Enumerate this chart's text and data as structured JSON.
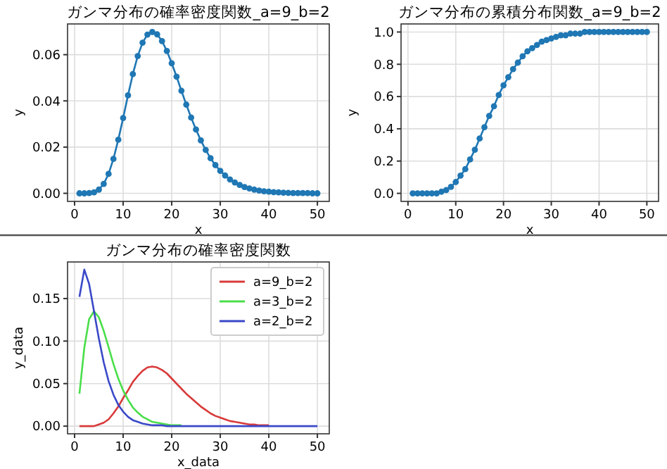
{
  "chart_data": [
    {
      "type": "line",
      "title": "ガンマ分布の確率密度関数_a=9_b=2",
      "xlabel": "x",
      "ylabel": "y",
      "x": [
        1,
        2,
        3,
        4,
        5,
        6,
        7,
        8,
        9,
        10,
        11,
        12,
        13,
        14,
        15,
        16,
        17,
        18,
        19,
        20,
        21,
        22,
        23,
        24,
        25,
        26,
        27,
        28,
        29,
        30,
        31,
        32,
        33,
        34,
        35,
        36,
        37,
        38,
        39,
        40,
        41,
        42,
        43,
        44,
        45,
        46,
        47,
        48,
        49,
        50
      ],
      "series": [
        {
          "color": "#1f77b4",
          "values": [
            0.0,
            0.0,
            0.0001,
            0.0004,
            0.0016,
            0.0041,
            0.0084,
            0.0149,
            0.0232,
            0.0326,
            0.0424,
            0.0516,
            0.0594,
            0.0652,
            0.0687,
            0.0698,
            0.0688,
            0.0659,
            0.0616,
            0.0563,
            0.0505,
            0.0444,
            0.0384,
            0.0328,
            0.0276,
            0.0229,
            0.0188,
            0.0152,
            0.0122,
            0.0097,
            0.0077,
            0.006,
            0.0047,
            0.0036,
            0.0027,
            0.0021,
            0.0016,
            0.0012,
            0.0009,
            0.0007,
            0.0005,
            0.0004,
            0.0003,
            0.0002,
            0.0001,
            0.0001,
            0.0001,
            0.0001,
            0.0,
            0.0
          ]
        }
      ],
      "xlim": [
        -1.45,
        52.45
      ],
      "ylim": [
        -0.0035,
        0.0733
      ],
      "xticks": [
        0,
        10,
        20,
        30,
        40,
        50
      ],
      "yticks": [
        {
          "value": 0,
          "label": "0.00"
        },
        {
          "value": 0.02,
          "label": "0.02"
        },
        {
          "value": 0.04,
          "label": "0.04"
        },
        {
          "value": 0.06,
          "label": "0.06"
        }
      ],
      "grid": true,
      "marker": "circle"
    },
    {
      "type": "line",
      "title": "ガンマ分布の累積分布関数_a=9_b=2",
      "xlabel": "x",
      "ylabel": "y",
      "x": [
        1,
        2,
        3,
        4,
        5,
        6,
        7,
        8,
        9,
        10,
        11,
        12,
        13,
        14,
        15,
        16,
        17,
        18,
        19,
        20,
        21,
        22,
        23,
        24,
        25,
        26,
        27,
        28,
        29,
        30,
        31,
        32,
        33,
        34,
        35,
        36,
        37,
        38,
        39,
        40,
        41,
        42,
        43,
        44,
        45,
        46,
        47,
        48,
        49,
        50
      ],
      "series": [
        {
          "color": "#1f77b4",
          "values": [
            0.0,
            0.0,
            0.0,
            0.0,
            0.0,
            0.0,
            0.01,
            0.02,
            0.04,
            0.07,
            0.11,
            0.15,
            0.21,
            0.27,
            0.34,
            0.41,
            0.48,
            0.54,
            0.61,
            0.67,
            0.72,
            0.77,
            0.81,
            0.85,
            0.88,
            0.9,
            0.92,
            0.94,
            0.95,
            0.96,
            0.97,
            0.98,
            0.98,
            0.99,
            0.99,
            0.99,
            1.0,
            1.0,
            1.0,
            1.0,
            1.0,
            1.0,
            1.0,
            1.0,
            1.0,
            1.0,
            1.0,
            1.0,
            1.0,
            1.0
          ]
        }
      ],
      "xlim": [
        -1.45,
        52.45
      ],
      "ylim": [
        -0.05,
        1.05
      ],
      "xticks": [
        0,
        10,
        20,
        30,
        40,
        50
      ],
      "yticks": [
        {
          "value": 0,
          "label": "0.0"
        },
        {
          "value": 0.2,
          "label": "0.2"
        },
        {
          "value": 0.4,
          "label": "0.4"
        },
        {
          "value": 0.6,
          "label": "0.6"
        },
        {
          "value": 0.8,
          "label": "0.8"
        },
        {
          "value": 1,
          "label": "1.0"
        }
      ],
      "grid": true,
      "marker": "circle"
    },
    {
      "type": "line",
      "title": "ガンマ分布の確率密度関数",
      "xlabel": "x_data",
      "ylabel": "y_data",
      "x": [
        1,
        2,
        3,
        4,
        5,
        6,
        7,
        8,
        9,
        10,
        11,
        12,
        13,
        14,
        15,
        16,
        17,
        18,
        19,
        20,
        21,
        22,
        23,
        24,
        25,
        26,
        27,
        28,
        29,
        30,
        31,
        32,
        33,
        34,
        35,
        36,
        37,
        38,
        39,
        40,
        41,
        42,
        43,
        44,
        45,
        46,
        47,
        48,
        49,
        50
      ],
      "series": [
        {
          "name": "a=9_b=2",
          "color": "#d83a3a",
          "values": [
            0.0,
            0.0,
            0.0,
            0.0,
            0.002,
            0.004,
            0.008,
            0.015,
            0.023,
            0.033,
            0.042,
            0.052,
            0.059,
            0.065,
            0.069,
            0.07,
            0.069,
            0.066,
            0.062,
            0.056,
            0.05,
            0.044,
            0.038,
            0.033,
            0.028,
            0.023,
            0.019,
            0.015,
            0.012,
            0.01,
            0.008,
            0.006,
            0.005,
            0.004,
            0.003,
            0.002,
            0.002,
            0.001,
            0.001,
            0.001,
            null,
            null,
            null,
            null,
            null,
            null,
            null,
            null,
            null,
            null
          ]
        },
        {
          "name": "a=3_b=2",
          "color": "#4ade4a",
          "values": [
            0.038,
            0.092,
            0.126,
            0.135,
            0.128,
            0.112,
            0.093,
            0.073,
            0.056,
            0.042,
            0.031,
            0.022,
            0.016,
            0.011,
            0.008,
            0.005,
            0.004,
            0.003,
            0.002,
            0.001,
            0.001,
            0.001,
            null,
            null,
            null,
            null,
            null,
            null,
            null,
            null,
            null,
            null,
            null,
            null,
            null,
            null,
            null,
            null,
            null,
            null,
            null,
            null,
            null,
            null,
            null,
            null,
            null,
            null,
            null,
            null
          ]
        },
        {
          "name": "a=2_b=2",
          "color": "#3a48c8",
          "values": [
            0.152,
            0.184,
            0.167,
            0.135,
            0.103,
            0.075,
            0.053,
            0.037,
            0.025,
            0.017,
            0.011,
            0.007,
            0.005,
            0.003,
            0.002,
            0.001,
            0.001,
            0.001,
            0.0,
            0.0,
            0.0,
            0.0,
            0.0,
            0.0,
            0.0,
            0.0,
            0.0,
            0.0,
            0.0,
            0.0,
            0.0,
            0.0,
            0.0,
            0.0,
            0.0,
            0.0,
            0.0,
            0.0,
            0.0,
            0.0,
            0.0,
            0.0,
            0.0,
            0.0,
            0.0,
            0.0,
            0.0,
            0.0,
            0.0,
            0.0
          ]
        }
      ],
      "xlim": [
        -1.45,
        52.45
      ],
      "ylim": [
        -0.009,
        0.193
      ],
      "xticks": [
        0,
        10,
        20,
        30,
        40,
        50
      ],
      "yticks": [
        {
          "value": 0,
          "label": "0.00"
        },
        {
          "value": 0.05,
          "label": "0.05"
        },
        {
          "value": 0.1,
          "label": "0.10"
        },
        {
          "value": 0.15,
          "label": "0.15"
        }
      ],
      "grid": true,
      "legend": "top right"
    }
  ]
}
